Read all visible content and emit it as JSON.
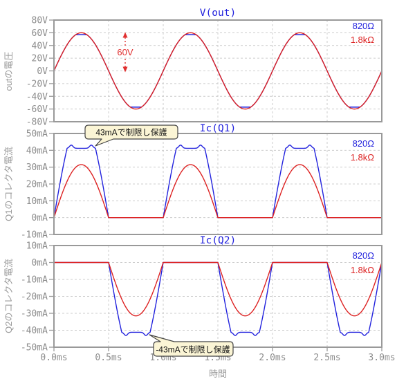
{
  "figure": {
    "x_axis_label": "時間",
    "x_tick_labels": [
      "0.0ms",
      "0.5ms",
      "1.0ms",
      "1.5ms",
      "2.0ms",
      "2.5ms",
      "3.0ms"
    ],
    "x_range_ms": [
      0,
      3
    ]
  },
  "colors": {
    "blue_trace": "#2222dd",
    "red_trace": "#dd2222",
    "axis": "#999999",
    "grid": "#cccccc",
    "tick_text": "#8c8c8c",
    "callout_bg": "#fbf5d5",
    "marker_red": "#e03030"
  },
  "panels": [
    {
      "title": "V(out)",
      "ylabel": "outの電圧",
      "ymin": -80,
      "ymax": 80,
      "ystep": 20,
      "ytick_labels": [
        "80V",
        "60V",
        "40V",
        "20V",
        "0V",
        "-20V",
        "-40V",
        "-60V",
        "-80V"
      ],
      "legend": [
        "820Ω",
        "1.8kΩ"
      ]
    },
    {
      "title": "Ic(Q1)",
      "ylabel": "Q1のコレクタ電流",
      "ymin": -10,
      "ymax": 50,
      "ystep": 10,
      "ytick_labels": [
        "50mA",
        "40mA",
        "30mA",
        "20mA",
        "10mA",
        "0mA",
        "-10mA"
      ],
      "legend": [
        "820Ω",
        "1.8kΩ"
      ]
    },
    {
      "title": "Ic(Q2)",
      "ylabel": "Q2のコレクタ電流",
      "ymin": -50,
      "ymax": 10,
      "ystep": 10,
      "ytick_labels": [
        "10mA",
        "0mA",
        "-10mA",
        "-20mA",
        "-30mA",
        "-40mA",
        "-50mA"
      ],
      "legend": [
        "820Ω",
        "1.8kΩ"
      ]
    }
  ],
  "annotations": {
    "swing_marker": {
      "text": "60V",
      "x_ms": 0.65,
      "from_V": 0,
      "to_V": 60
    },
    "q1_callout": {
      "text": "43mAで制限し保護"
    },
    "q2_callout": {
      "text": "-43mAで制限し保護"
    }
  },
  "chart_data": [
    {
      "type": "line",
      "title": "V(out)",
      "xlabel": "時間",
      "ylabel": "outの電圧",
      "x_range_ms": [
        0,
        3
      ],
      "x_ticks_ms": [
        0,
        0.5,
        1,
        1.5,
        2,
        2.5,
        3
      ],
      "ylim": [
        -80,
        80
      ],
      "y_tick_step": 20,
      "grid": true,
      "legend_position": "top-right",
      "series": [
        {
          "name": "820Ω",
          "color": "#2222dd",
          "waveform": "clipped_sine",
          "amplitude": 60,
          "clip": 57,
          "period_ms": 1
        },
        {
          "name": "1.8kΩ",
          "color": "#dd2222",
          "waveform": "sine",
          "amplitude": 60,
          "period_ms": 1
        }
      ],
      "annotation": {
        "text": "60V",
        "meaning": "0V-to-peak amplitude is 60V",
        "at_ms": 0.65
      }
    },
    {
      "type": "line",
      "title": "Ic(Q1)",
      "xlabel": "時間",
      "ylabel": "Q1のコレクタ電流",
      "x_range_ms": [
        0,
        3
      ],
      "ylim": [
        -10,
        50
      ],
      "y_tick_step": 10,
      "grid": true,
      "legend_position": "top-right",
      "series": [
        {
          "name": "820Ω",
          "color": "#2222dd",
          "waveform": "half_sine_limited",
          "polarity": 1,
          "drive": 60,
          "limit": 43,
          "plateau": 41.2,
          "bump": 1.9,
          "bump_offset_ms": 0.038,
          "bump_sigma_ms": 0.022,
          "period_ms": 1
        },
        {
          "name": "1.8kΩ",
          "color": "#dd2222",
          "waveform": "half_sine",
          "polarity": 1,
          "amplitude": 31.5,
          "period_ms": 1
        }
      ],
      "callout": "43mAで制限し保護"
    },
    {
      "type": "line",
      "title": "Ic(Q2)",
      "xlabel": "時間",
      "ylabel": "Q2のコレクタ電流",
      "x_range_ms": [
        0,
        3
      ],
      "ylim": [
        -50,
        10
      ],
      "y_tick_step": 10,
      "grid": true,
      "legend_position": "top-right",
      "series": [
        {
          "name": "820Ω",
          "color": "#2222dd",
          "waveform": "half_sine_limited",
          "polarity": -1,
          "drive": 60,
          "limit": -43,
          "plateau": 41.2,
          "bump": 1.9,
          "bump_offset_ms": 0.038,
          "bump_sigma_ms": 0.022,
          "period_ms": 1
        },
        {
          "name": "1.8kΩ",
          "color": "#dd2222",
          "waveform": "half_sine",
          "polarity": -1,
          "amplitude": 31.5,
          "period_ms": 1
        }
      ],
      "callout": "-43mAで制限し保護"
    }
  ]
}
